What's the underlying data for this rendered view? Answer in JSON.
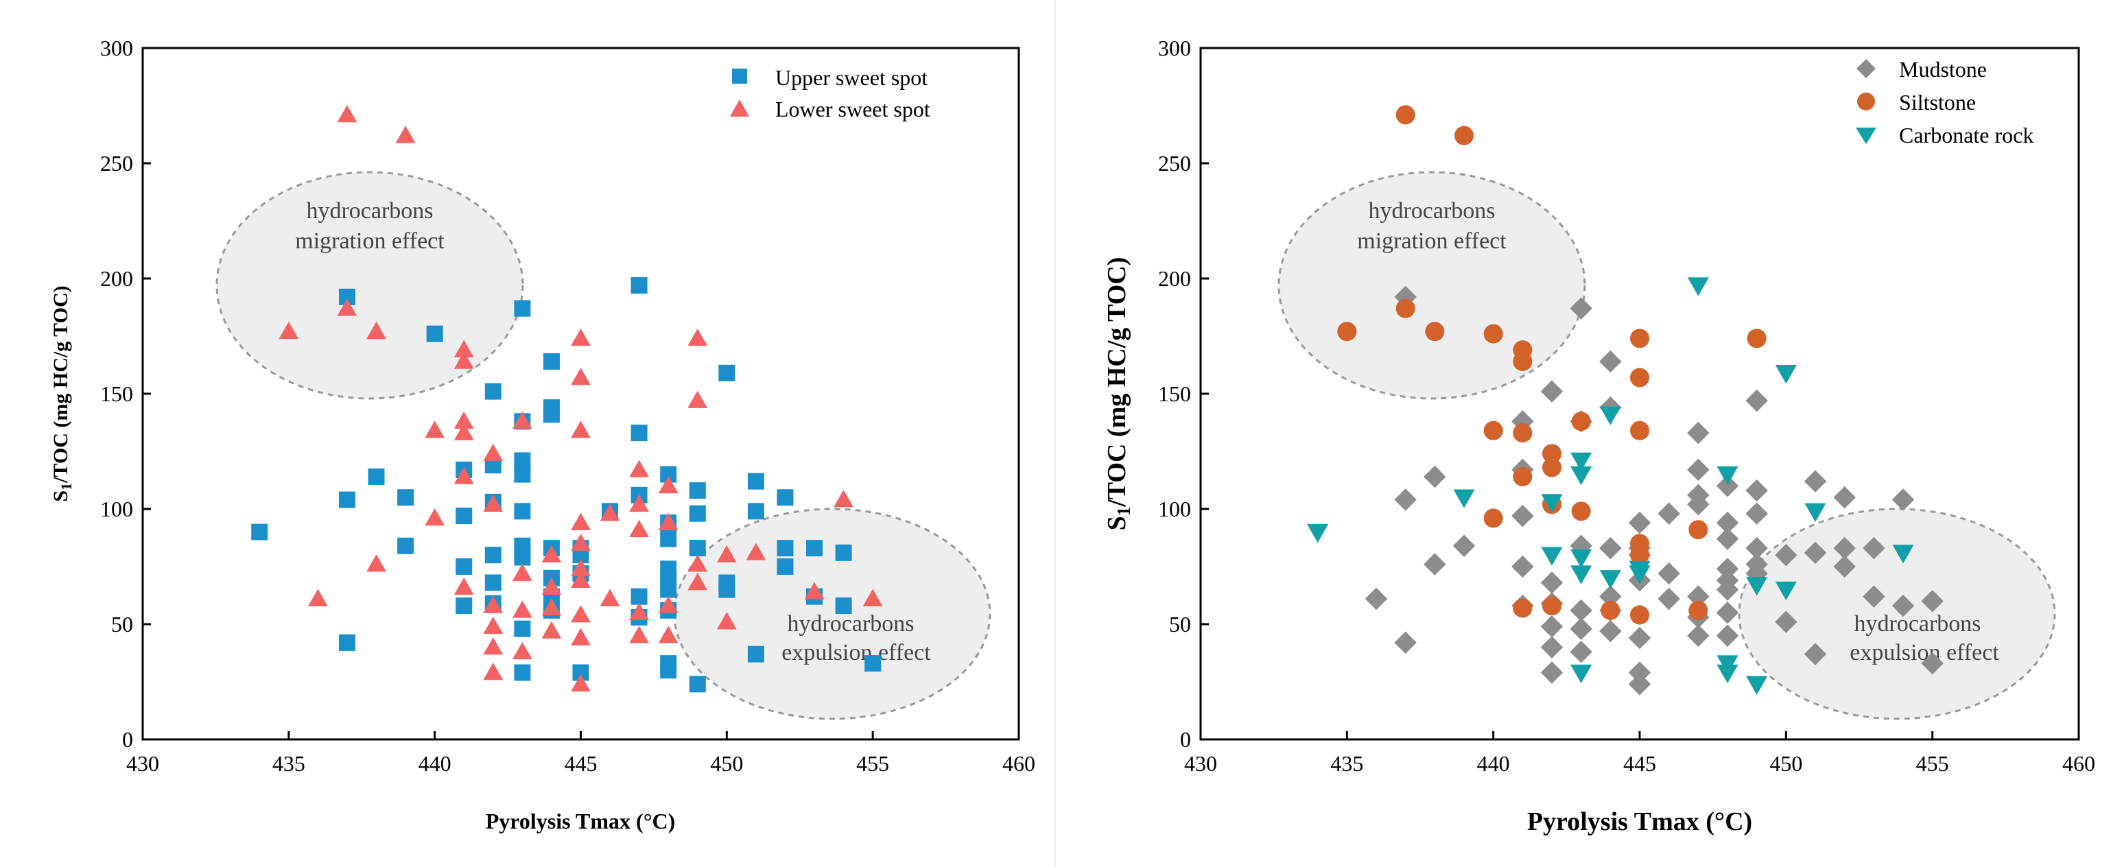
{
  "chart_data": [
    {
      "type": "scatter",
      "xlabel": "Pyrolysis Tmax (°C)",
      "ylabel_parts": [
        "S",
        "1",
        "/TOC (mg HC/g TOC)"
      ],
      "xlim": [
        430,
        460
      ],
      "ylim": [
        0,
        300
      ],
      "xticks": [
        430,
        435,
        440,
        445,
        450,
        455,
        460
      ],
      "yticks": [
        0,
        50,
        100,
        150,
        200,
        250,
        300
      ],
      "legend_position": "top-right",
      "annotations": [
        {
          "lines": [
            "hydrocarbons",
            "migration  effect"
          ]
        },
        {
          "lines": [
            "hydrocarbons",
            "expulsion effect"
          ]
        }
      ],
      "series": [
        {
          "name": "Upper sweet spot",
          "marker": "square",
          "color": "#1a8fcc",
          "points": [
            [
              434,
              90
            ],
            [
              437,
              42
            ],
            [
              437,
              104
            ],
            [
              437,
              192
            ],
            [
              438,
              114
            ],
            [
              439,
              84
            ],
            [
              439,
              105
            ],
            [
              440,
              176
            ],
            [
              441,
              58
            ],
            [
              441,
              75
            ],
            [
              441,
              97
            ],
            [
              441,
              117
            ],
            [
              442,
              59
            ],
            [
              442,
              68
            ],
            [
              442,
              80
            ],
            [
              442,
              103
            ],
            [
              442,
              119
            ],
            [
              442,
              151
            ],
            [
              443,
              29
            ],
            [
              443,
              48
            ],
            [
              443,
              79
            ],
            [
              443,
              84
            ],
            [
              443,
              99
            ],
            [
              443,
              115
            ],
            [
              443,
              121
            ],
            [
              443,
              138
            ],
            [
              443,
              187
            ],
            [
              444,
              56
            ],
            [
              444,
              62
            ],
            [
              444,
              70
            ],
            [
              444,
              83
            ],
            [
              444,
              141
            ],
            [
              444,
              144
            ],
            [
              444,
              164
            ],
            [
              445,
              29
            ],
            [
              445,
              72
            ],
            [
              445,
              80
            ],
            [
              445,
              83
            ],
            [
              446,
              99
            ],
            [
              447,
              53
            ],
            [
              447,
              62
            ],
            [
              447,
              106
            ],
            [
              447,
              133
            ],
            [
              447,
              197
            ],
            [
              448,
              30
            ],
            [
              448,
              33
            ],
            [
              448,
              56
            ],
            [
              448,
              65
            ],
            [
              448,
              69
            ],
            [
              448,
              74
            ],
            [
              448,
              87
            ],
            [
              448,
              94
            ],
            [
              448,
              115
            ],
            [
              449,
              24
            ],
            [
              449,
              83
            ],
            [
              449,
              98
            ],
            [
              449,
              108
            ],
            [
              450,
              65
            ],
            [
              450,
              68
            ],
            [
              450,
              159
            ],
            [
              451,
              37
            ],
            [
              451,
              99
            ],
            [
              451,
              112
            ],
            [
              452,
              75
            ],
            [
              452,
              83
            ],
            [
              452,
              105
            ],
            [
              453,
              62
            ],
            [
              453,
              83
            ],
            [
              454,
              58
            ],
            [
              454,
              81
            ],
            [
              455,
              33
            ]
          ]
        },
        {
          "name": "Lower sweet spot",
          "marker": "triangle",
          "color": "#f26262",
          "points": [
            [
              435,
              177
            ],
            [
              436,
              61
            ],
            [
              437,
              187
            ],
            [
              437,
              271
            ],
            [
              438,
              76
            ],
            [
              438,
              177
            ],
            [
              439,
              262
            ],
            [
              440,
              96
            ],
            [
              440,
              134
            ],
            [
              441,
              66
            ],
            [
              441,
              114
            ],
            [
              441,
              133
            ],
            [
              441,
              138
            ],
            [
              441,
              164
            ],
            [
              441,
              169
            ],
            [
              442,
              29
            ],
            [
              442,
              40
            ],
            [
              442,
              49
            ],
            [
              442,
              58
            ],
            [
              442,
              102
            ],
            [
              442,
              124
            ],
            [
              443,
              38
            ],
            [
              443,
              56
            ],
            [
              443,
              72
            ],
            [
              443,
              138
            ],
            [
              444,
              47
            ],
            [
              444,
              57
            ],
            [
              444,
              66
            ],
            [
              444,
              80
            ],
            [
              445,
              24
            ],
            [
              445,
              44
            ],
            [
              445,
              54
            ],
            [
              445,
              69
            ],
            [
              445,
              74
            ],
            [
              445,
              85
            ],
            [
              445,
              94
            ],
            [
              445,
              134
            ],
            [
              445,
              157
            ],
            [
              445,
              174
            ],
            [
              446,
              61
            ],
            [
              446,
              98
            ],
            [
              447,
              45
            ],
            [
              447,
              55
            ],
            [
              447,
              91
            ],
            [
              447,
              102
            ],
            [
              447,
              117
            ],
            [
              448,
              45
            ],
            [
              448,
              58
            ],
            [
              448,
              94
            ],
            [
              448,
              110
            ],
            [
              449,
              68
            ],
            [
              449,
              76
            ],
            [
              449,
              147
            ],
            [
              449,
              174
            ],
            [
              450,
              51
            ],
            [
              450,
              80
            ],
            [
              451,
              81
            ],
            [
              453,
              64
            ],
            [
              454,
              104
            ],
            [
              455,
              61
            ]
          ]
        }
      ]
    },
    {
      "type": "scatter",
      "xlabel": "Pyrolysis Tmax (°C)",
      "ylabel_parts": [
        "S",
        "1",
        "/TOC (mg HC/g TOC)"
      ],
      "xlim": [
        430,
        460
      ],
      "ylim": [
        0,
        300
      ],
      "xticks": [
        430,
        435,
        440,
        445,
        450,
        455,
        460
      ],
      "yticks": [
        0,
        50,
        100,
        150,
        200,
        250,
        300
      ],
      "legend_position": "top-right",
      "annotations": [
        {
          "lines": [
            "hydrocarbons",
            "migration  effect"
          ]
        },
        {
          "lines": [
            "hydrocarbons",
            "expulsion effect"
          ]
        }
      ],
      "series": [
        {
          "name": "Mudstone",
          "marker": "diamond",
          "color": "#8c8c8c",
          "points": [
            [
              436,
              61
            ],
            [
              437,
              42
            ],
            [
              437,
              104
            ],
            [
              437,
              192
            ],
            [
              438,
              76
            ],
            [
              438,
              114
            ],
            [
              439,
              84
            ],
            [
              441,
              58
            ],
            [
              441,
              75
            ],
            [
              441,
              97
            ],
            [
              441,
              117
            ],
            [
              441,
              138
            ],
            [
              442,
              29
            ],
            [
              442,
              40
            ],
            [
              442,
              49
            ],
            [
              442,
              59
            ],
            [
              442,
              68
            ],
            [
              442,
              151
            ],
            [
              443,
              38
            ],
            [
              443,
              48
            ],
            [
              443,
              56
            ],
            [
              443,
              84
            ],
            [
              443,
              138
            ],
            [
              443,
              187
            ],
            [
              444,
              47
            ],
            [
              444,
              56
            ],
            [
              444,
              62
            ],
            [
              444,
              83
            ],
            [
              444,
              144
            ],
            [
              444,
              164
            ],
            [
              445,
              24
            ],
            [
              445,
              29
            ],
            [
              445,
              44
            ],
            [
              445,
              69
            ],
            [
              445,
              80
            ],
            [
              445,
              83
            ],
            [
              445,
              94
            ],
            [
              446,
              61
            ],
            [
              446,
              72
            ],
            [
              446,
              98
            ],
            [
              447,
              45
            ],
            [
              447,
              53
            ],
            [
              447,
              62
            ],
            [
              447,
              102
            ],
            [
              447,
              106
            ],
            [
              447,
              117
            ],
            [
              447,
              133
            ],
            [
              448,
              45
            ],
            [
              448,
              55
            ],
            [
              448,
              65
            ],
            [
              448,
              69
            ],
            [
              448,
              74
            ],
            [
              448,
              87
            ],
            [
              448,
              94
            ],
            [
              448,
              110
            ],
            [
              449,
              72
            ],
            [
              449,
              76
            ],
            [
              449,
              83
            ],
            [
              449,
              98
            ],
            [
              449,
              108
            ],
            [
              449,
              147
            ],
            [
              450,
              51
            ],
            [
              450,
              80
            ],
            [
              451,
              37
            ],
            [
              451,
              81
            ],
            [
              451,
              112
            ],
            [
              452,
              75
            ],
            [
              452,
              83
            ],
            [
              452,
              105
            ],
            [
              453,
              62
            ],
            [
              453,
              83
            ],
            [
              454,
              58
            ],
            [
              454,
              104
            ],
            [
              455,
              33
            ],
            [
              455,
              60
            ]
          ]
        },
        {
          "name": "Siltstone",
          "marker": "circle",
          "color": "#d2622a",
          "points": [
            [
              435,
              177
            ],
            [
              437,
              187
            ],
            [
              437,
              271
            ],
            [
              438,
              177
            ],
            [
              439,
              262
            ],
            [
              440,
              96
            ],
            [
              440,
              134
            ],
            [
              440,
              176
            ],
            [
              441,
              57
            ],
            [
              441,
              114
            ],
            [
              441,
              133
            ],
            [
              441,
              164
            ],
            [
              441,
              169
            ],
            [
              442,
              58
            ],
            [
              442,
              102
            ],
            [
              442,
              118
            ],
            [
              442,
              124
            ],
            [
              443,
              99
            ],
            [
              443,
              138
            ],
            [
              444,
              56
            ],
            [
              445,
              54
            ],
            [
              445,
              80
            ],
            [
              445,
              85
            ],
            [
              445,
              134
            ],
            [
              445,
              157
            ],
            [
              445,
              174
            ],
            [
              447,
              56
            ],
            [
              447,
              91
            ],
            [
              449,
              174
            ]
          ]
        },
        {
          "name": "Carbonate rock",
          "marker": "triangle-down",
          "color": "#12a0a8",
          "points": [
            [
              434,
              90
            ],
            [
              439,
              105
            ],
            [
              442,
              80
            ],
            [
              442,
              103
            ],
            [
              443,
              29
            ],
            [
              443,
              72
            ],
            [
              443,
              79
            ],
            [
              443,
              115
            ],
            [
              443,
              121
            ],
            [
              444,
              70
            ],
            [
              444,
              141
            ],
            [
              445,
              72
            ],
            [
              445,
              74
            ],
            [
              447,
              197
            ],
            [
              448,
              29
            ],
            [
              448,
              33
            ],
            [
              448,
              115
            ],
            [
              449,
              24
            ],
            [
              449,
              67
            ],
            [
              450,
              65
            ],
            [
              450,
              159
            ],
            [
              451,
              99
            ],
            [
              454,
              81
            ]
          ]
        }
      ]
    }
  ]
}
